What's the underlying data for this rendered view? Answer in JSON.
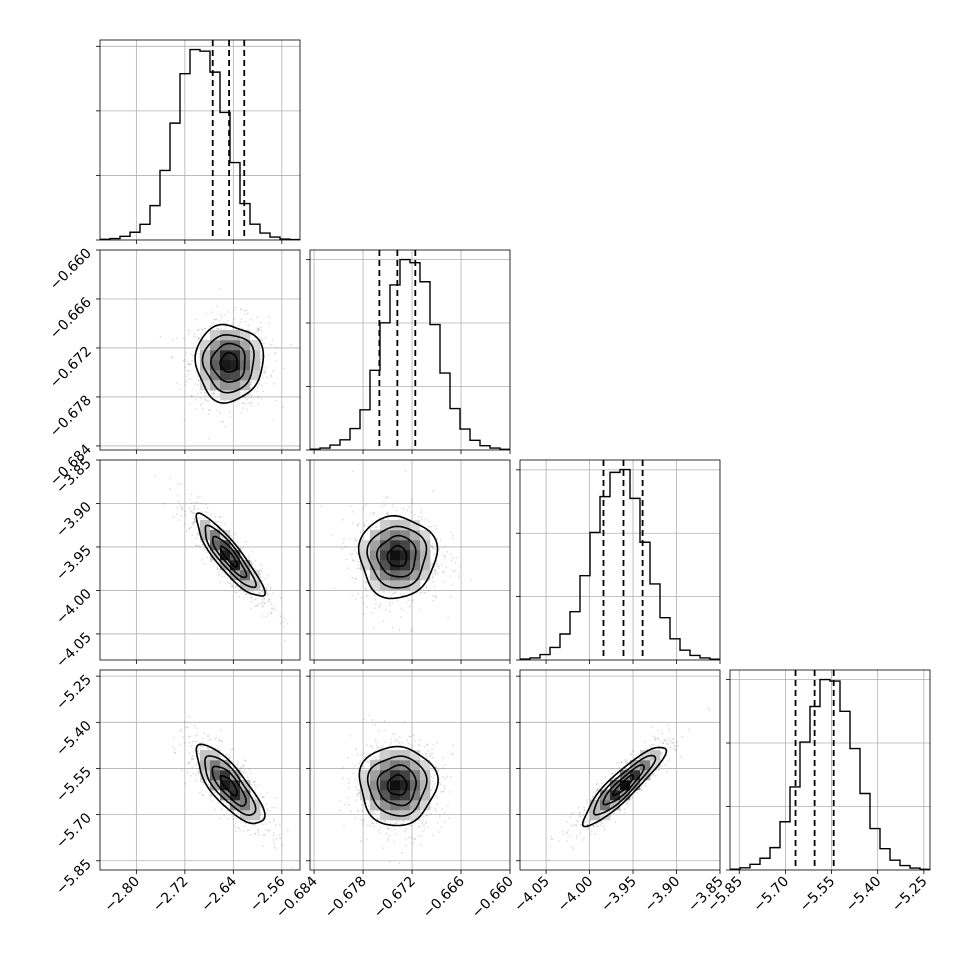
{
  "chart_data": {
    "type": "corner",
    "parameters": [
      {
        "range": [
          -2.86,
          -2.53
        ],
        "ticks": [
          "−2.80",
          "−2.72",
          "−2.64",
          "−2.56"
        ],
        "tick_values": [
          -2.8,
          -2.72,
          -2.64,
          -2.56
        ],
        "median": -2.647,
        "quantiles": [
          -2.674,
          -2.647,
          -2.622
        ],
        "sigma": 0.026
      },
      {
        "range": [
          -0.6845,
          -0.66
        ],
        "ticks": [
          "−0.684",
          "−0.678",
          "−0.672",
          "−0.666",
          "−0.660"
        ],
        "tick_values": [
          -0.684,
          -0.678,
          -0.672,
          -0.666,
          -0.66
        ],
        "median": -0.6738,
        "quantiles": [
          -0.676,
          -0.6738,
          -0.6716
        ],
        "sigma": 0.0022
      },
      {
        "range": [
          -4.08,
          -3.85
        ],
        "ticks": [
          "−4.05",
          "−4.00",
          "−3.95",
          "−3.90",
          "−3.85"
        ],
        "tick_values": [
          -4.05,
          -4.0,
          -3.95,
          -3.9,
          -3.85
        ],
        "median": -3.961,
        "quantiles": [
          -3.984,
          -3.961,
          -3.939
        ],
        "sigma": 0.022
      },
      {
        "range": [
          -5.88,
          -5.23
        ],
        "ticks": [
          "−5.85",
          "−5.70",
          "−5.55",
          "−5.40",
          "−5.25"
        ],
        "tick_values": [
          -5.85,
          -5.7,
          -5.55,
          -5.4,
          -5.25
        ],
        "median": -5.605,
        "quantiles": [
          -5.667,
          -5.605,
          -5.543
        ],
        "sigma": 0.06
      }
    ],
    "correlations": [
      [
        1,
        0,
        -0.88,
        -0.78
      ],
      [
        0,
        1,
        0,
        0
      ],
      [
        -0.88,
        0,
        1,
        0.9
      ],
      [
        -0.78,
        0,
        0.9,
        1
      ]
    ],
    "histograms": [
      {
        "values": [
          0.4,
          0.9,
          2.3,
          4.8,
          9.7,
          21.3,
          43.1,
          72.4,
          103,
          118,
          117,
          104,
          79,
          48,
          22.6,
          9.8,
          4.3,
          1.8,
          0.6,
          0.3
        ]
      },
      {
        "values": [
          0.5,
          1.2,
          3.1,
          6.4,
          13.5,
          25.3,
          50.2,
          80.1,
          104,
          120,
          118,
          106,
          79,
          48.5,
          26.1,
          13.2,
          6.1,
          2.7,
          1.2,
          0.4
        ]
      },
      {
        "values": [
          0.6,
          1.3,
          3.4,
          7.9,
          16.4,
          30.5,
          53.2,
          80.5,
          103.1,
          118.4,
          120.2,
          102,
          74.3,
          48,
          26.7,
          13.4,
          6.2,
          2.9,
          1.3,
          0.5
        ]
      },
      {
        "values": [
          0.5,
          1.4,
          3.6,
          7.4,
          14.1,
          30.4,
          52.3,
          80.6,
          103,
          120,
          119,
          100,
          76.5,
          48.2,
          26.1,
          13.4,
          6.2,
          2.8,
          1.2,
          0.4
        ]
      }
    ],
    "grid": true,
    "contour_levels_sigma": [
      0.5,
      1,
      1.5,
      2
    ]
  }
}
